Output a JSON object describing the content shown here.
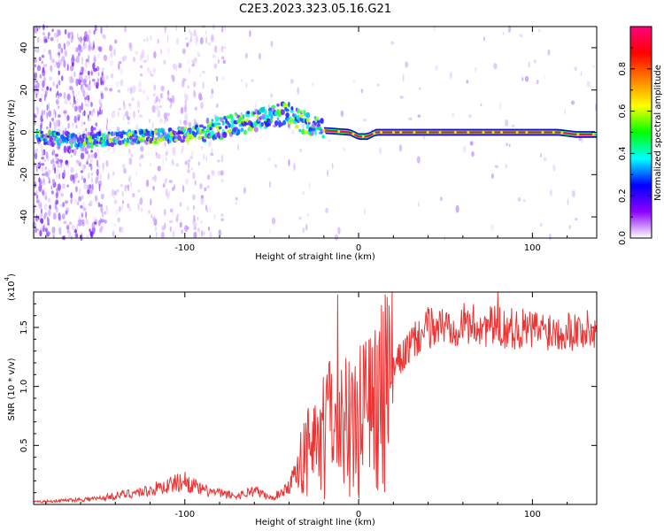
{
  "title": "C2E3.2023.323.05.16.G21",
  "chart_data": [
    {
      "type": "heatmap",
      "xlabel": "Height of straight line (km)",
      "ylabel": "Frequency (Hz)",
      "xlim": [
        -187,
        137
      ],
      "ylim": [
        -50,
        50
      ],
      "xticks": [
        -100,
        0,
        100
      ],
      "yticks": [
        -40,
        -20,
        0,
        20,
        40
      ],
      "colorbar": {
        "label": "Normalized spectral amplitude",
        "ticks": [
          "0.0",
          "0.2",
          "0.4",
          "0.6",
          "0.8"
        ],
        "range": [
          0,
          1
        ],
        "colors": [
          "#ffffff",
          "#8c00ff",
          "#0000ff",
          "#00ffff",
          "#00ff00",
          "#ffff00",
          "#ff8000",
          "#ff0000",
          "#ff0080"
        ]
      },
      "ridge": [
        {
          "x": -185,
          "f": -2
        },
        {
          "x": -160,
          "f": -4
        },
        {
          "x": -140,
          "f": -3
        },
        {
          "x": -120,
          "f": -2
        },
        {
          "x": -100,
          "f": -1
        },
        {
          "x": -80,
          "f": 2
        },
        {
          "x": -65,
          "f": 5
        },
        {
          "x": -52,
          "f": 7
        },
        {
          "x": -42,
          "f": 9
        },
        {
          "x": -32,
          "f": 5
        },
        {
          "x": -22,
          "f": 1
        },
        {
          "x": -5,
          "f": 0
        },
        {
          "x": 0,
          "f": -2
        },
        {
          "x": 5,
          "f": -2
        },
        {
          "x": 10,
          "f": 0
        },
        {
          "x": 115,
          "f": 0
        },
        {
          "x": 125,
          "f": -1
        },
        {
          "x": 137,
          "f": -1
        }
      ]
    },
    {
      "type": "line",
      "xlabel": "Height of straight line (km)",
      "ylabel": "SNR (10 * v/v)",
      "yscale_label": "(x10",
      "yscale_exp": "4",
      "scale": 10000,
      "color": "#ee3333",
      "xlim": [
        -187,
        137
      ],
      "ylim": [
        0,
        18000
      ],
      "xticks": [
        -100,
        0,
        100
      ],
      "yticks": [
        5000,
        10000,
        15000
      ],
      "ytick_labels": [
        "0.5",
        "1.0",
        "1.5"
      ],
      "envelope": [
        {
          "x": -187,
          "y": 200
        },
        {
          "x": -150,
          "y": 500
        },
        {
          "x": -120,
          "y": 1200
        },
        {
          "x": -100,
          "y": 2000
        },
        {
          "x": -90,
          "y": 1200
        },
        {
          "x": -70,
          "y": 700
        },
        {
          "x": -60,
          "y": 1200
        },
        {
          "x": -50,
          "y": 500
        },
        {
          "x": -40,
          "y": 1500
        },
        {
          "x": -35,
          "y": 3500
        },
        {
          "x": -30,
          "y": 5000
        },
        {
          "x": -25,
          "y": 6000
        },
        {
          "x": -20,
          "y": 7500
        },
        {
          "x": -12,
          "y": 7500
        },
        {
          "x": -5,
          "y": 8000
        },
        {
          "x": 0,
          "y": 8500
        },
        {
          "x": 5,
          "y": 9000
        },
        {
          "x": 10,
          "y": 10000
        },
        {
          "x": 20,
          "y": 11500
        },
        {
          "x": 30,
          "y": 13500
        },
        {
          "x": 40,
          "y": 15000
        },
        {
          "x": 60,
          "y": 15300
        },
        {
          "x": 80,
          "y": 15000
        },
        {
          "x": 100,
          "y": 14800
        },
        {
          "x": 120,
          "y": 14800
        },
        {
          "x": 137,
          "y": 14700
        }
      ],
      "spikes": [
        {
          "x": -12,
          "y": 17800
        },
        {
          "x": 80,
          "y": 18000
        },
        {
          "x": 10,
          "y": 5000
        }
      ]
    }
  ]
}
